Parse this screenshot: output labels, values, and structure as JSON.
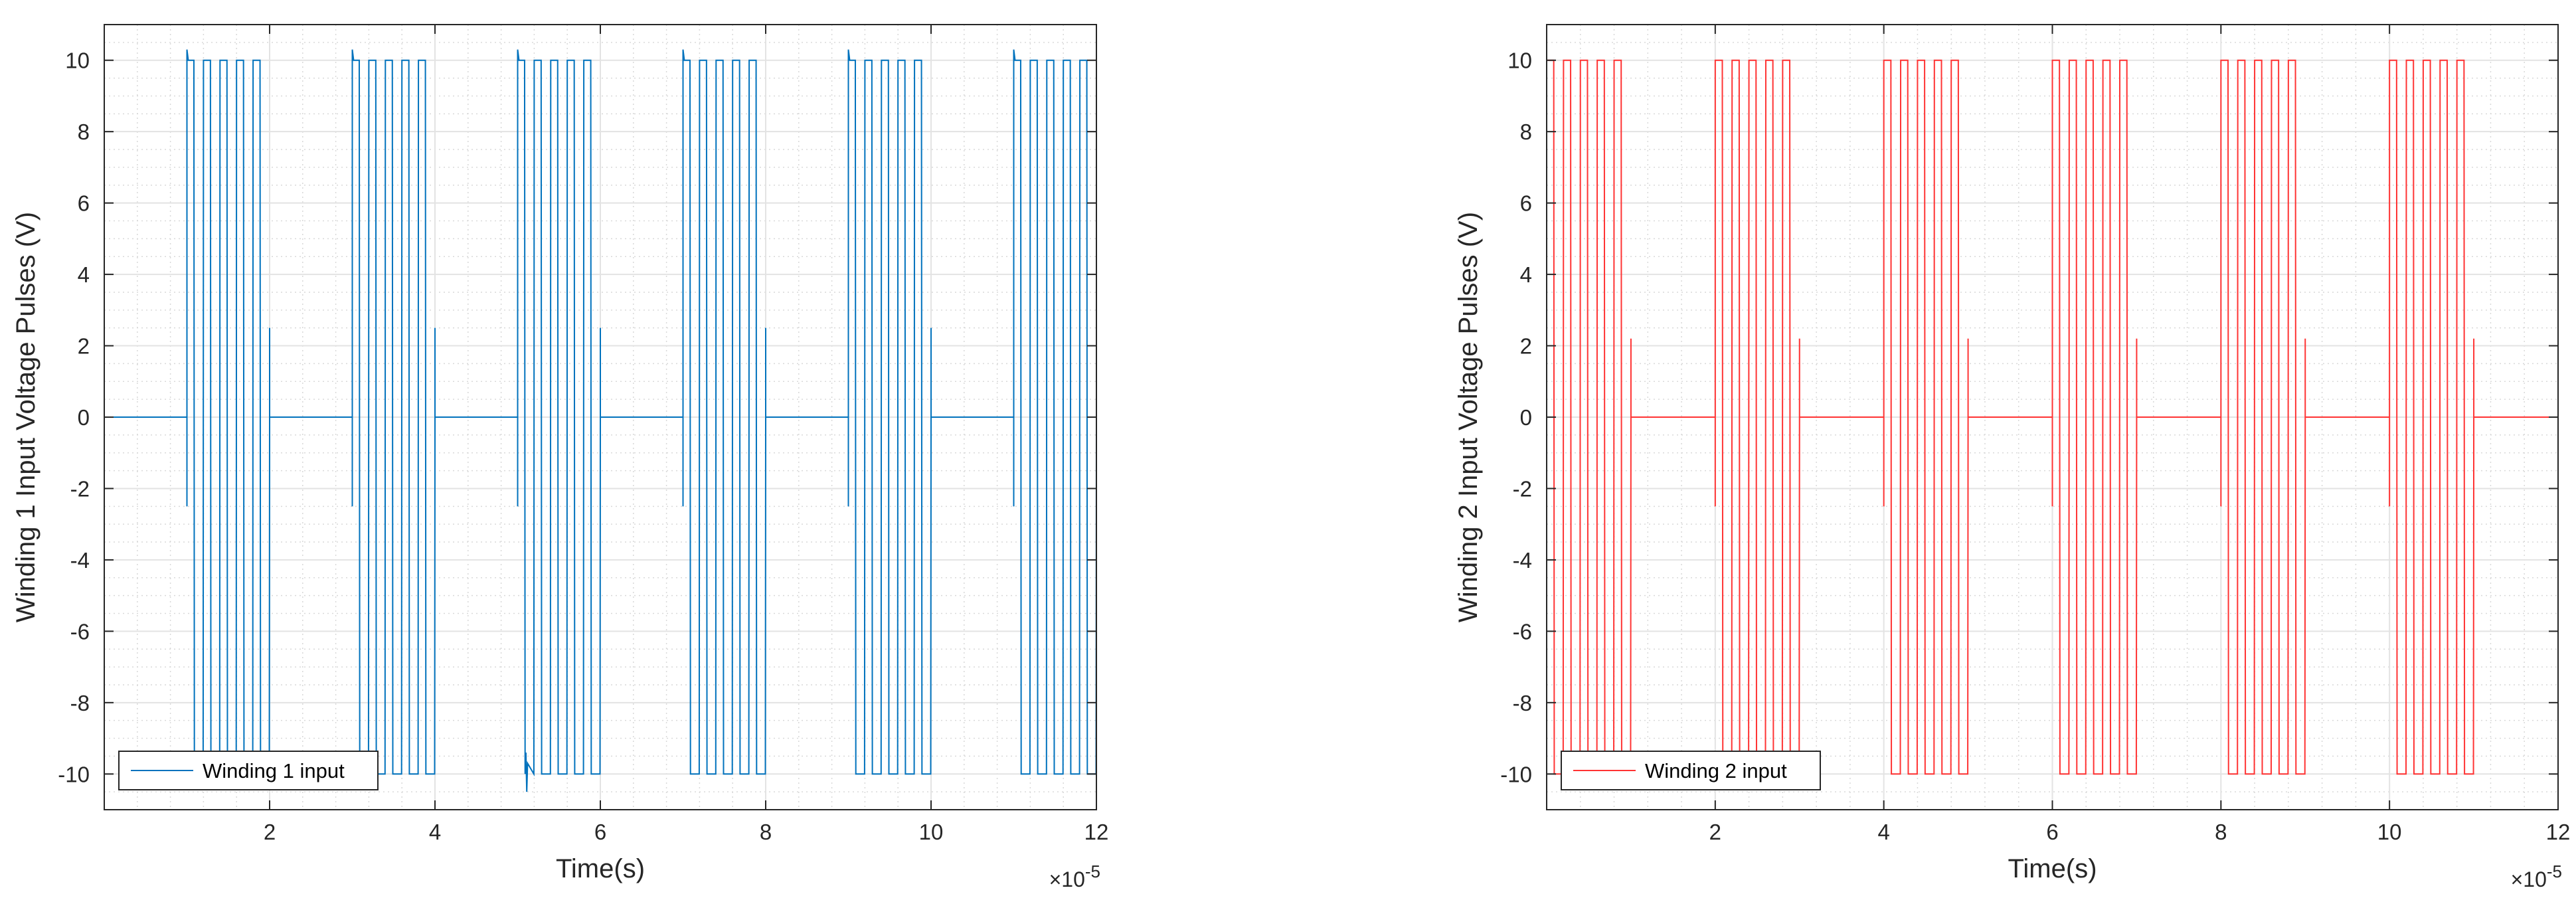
{
  "figure": "two side-by-side MATLAB voltage pulse plots",
  "chart_data": [
    {
      "type": "line",
      "id": "left",
      "title": "",
      "xlabel": "Time(s)",
      "ylabel": "Winding 1 Input Voltage Pulses (V)",
      "xlim": [
        0,
        12
      ],
      "ylim": [
        -11,
        11
      ],
      "x_scale_label": "×10",
      "x_scale_exponent": "-5",
      "xticks": [
        2,
        4,
        6,
        8,
        10,
        12
      ],
      "xtick_labels": [
        "2",
        "4",
        "6",
        "8",
        "10",
        "12"
      ],
      "yticks": [
        10,
        8,
        6,
        4,
        2,
        0,
        -2,
        -4,
        -6,
        -8,
        -10
      ],
      "ytick_labels": [
        "10",
        "8",
        "6",
        "4",
        "2",
        "0",
        "-2",
        "-4",
        "-6",
        "-8",
        "-10"
      ],
      "grid": true,
      "legend": {
        "placement": "bottom-left",
        "entries": [
          "Winding 1 input"
        ]
      },
      "series": [
        {
          "name": "Winding 1 input",
          "color": "#0072BD",
          "amplitude": 10,
          "idle_value": 0,
          "burst_starts": [
            1,
            3,
            5,
            7,
            9,
            11
          ],
          "burst_duration": 1,
          "pulses_per_burst": 5,
          "edge_spike": 2.5,
          "lead_spike": 10.3,
          "ringing_at": 5.1
        }
      ]
    },
    {
      "type": "line",
      "id": "right",
      "title": "",
      "xlabel": "Time(s)",
      "ylabel": "Winding 2 Input Voltage Pulses (V)",
      "xlim": [
        0,
        12
      ],
      "ylim": [
        -11,
        11
      ],
      "x_scale_label": "×10",
      "x_scale_exponent": "-5",
      "xticks": [
        2,
        4,
        6,
        8,
        10,
        12
      ],
      "xtick_labels": [
        "2",
        "4",
        "6",
        "8",
        "10",
        "12"
      ],
      "yticks": [
        10,
        8,
        6,
        4,
        2,
        0,
        -2,
        -4,
        -6,
        -8,
        -10
      ],
      "ytick_labels": [
        "10",
        "8",
        "6",
        "4",
        "2",
        "0",
        "-2",
        "-4",
        "-6",
        "-8",
        "-10"
      ],
      "grid": true,
      "legend": {
        "placement": "bottom-left",
        "entries": [
          "Winding 2 input"
        ]
      },
      "series": [
        {
          "name": "Winding 2 input",
          "color": "#FF3333",
          "amplitude": 10,
          "idle_value": 0,
          "burst_starts": [
            0,
            2,
            4,
            6,
            8,
            10
          ],
          "burst_duration": 1,
          "pulses_per_burst": 5,
          "edge_spike": 2.2,
          "lead_spike": 0,
          "ringing_at": null
        }
      ]
    }
  ]
}
